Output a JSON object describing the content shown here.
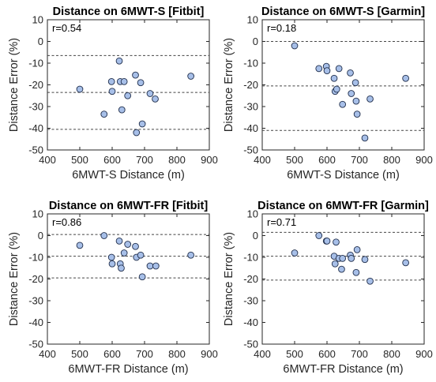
{
  "colors": {
    "marker_fill": "#a7bfe8",
    "marker_edge": "#1f2d4a"
  },
  "chart_data": [
    {
      "type": "scatter",
      "title": "Distance on 6MWT-S [Fitbit]",
      "xlabel": "6MWT-S Distance (m)",
      "ylabel": "Distance Error (%)",
      "xlim": [
        400,
        900
      ],
      "ylim": [
        -50,
        10
      ],
      "xticks": [
        400,
        500,
        600,
        700,
        800,
        900
      ],
      "yticks": [
        -50,
        -40,
        -30,
        -20,
        -10,
        0,
        10
      ],
      "grid": false,
      "annotation": "r=0.54",
      "ref_lines": [
        -6.5,
        -23.5,
        -40.5
      ],
      "points": [
        [
          500,
          -22
        ],
        [
          575,
          -33.5
        ],
        [
          598,
          -18.5
        ],
        [
          600,
          -23
        ],
        [
          622,
          -9
        ],
        [
          625,
          -18.5
        ],
        [
          630,
          -31.5
        ],
        [
          637,
          -18.5
        ],
        [
          648,
          -25
        ],
        [
          672,
          -15.5
        ],
        [
          675,
          -42
        ],
        [
          688,
          -19
        ],
        [
          693,
          -38
        ],
        [
          717,
          -24
        ],
        [
          733,
          -26.5
        ],
        [
          843,
          -16
        ]
      ]
    },
    {
      "type": "scatter",
      "title": "Distance on 6MWT-S [Garmin]",
      "xlabel": "6MWT-S Distance (m)",
      "ylabel": "Distance Error (%)",
      "xlim": [
        400,
        900
      ],
      "ylim": [
        -50,
        10
      ],
      "xticks": [
        400,
        500,
        600,
        700,
        800,
        900
      ],
      "yticks": [
        -50,
        -40,
        -30,
        -20,
        -10,
        0,
        10
      ],
      "grid": false,
      "annotation": "r=0.18",
      "ref_lines": [
        0,
        -20.5,
        -41
      ],
      "points": [
        [
          500,
          -2
        ],
        [
          575,
          -12.5
        ],
        [
          598,
          -11.5
        ],
        [
          600,
          -13.5
        ],
        [
          622,
          -17
        ],
        [
          625,
          -23
        ],
        [
          630,
          -22
        ],
        [
          637,
          -12.5
        ],
        [
          648,
          -29
        ],
        [
          672,
          -14.5
        ],
        [
          675,
          -24
        ],
        [
          688,
          -19
        ],
        [
          693,
          -33.5
        ],
        [
          690,
          -27.5
        ],
        [
          717,
          -44.5
        ],
        [
          733,
          -26.5
        ],
        [
          843,
          -17
        ]
      ]
    },
    {
      "type": "scatter",
      "title": "Distance on 6MWT-FR [Fitbit]",
      "xlabel": "6MWT-FR Distance (m)",
      "ylabel": "Distance Error (%)",
      "xlim": [
        400,
        900
      ],
      "ylim": [
        -50,
        10
      ],
      "xticks": [
        400,
        500,
        600,
        700,
        800,
        900
      ],
      "yticks": [
        -50,
        -40,
        -30,
        -20,
        -10,
        0,
        10
      ],
      "grid": false,
      "annotation": "r=0.86",
      "ref_lines": [
        0.5,
        -9.5,
        -19.5
      ],
      "points": [
        [
          500,
          -4.5
        ],
        [
          575,
          0
        ],
        [
          598,
          -10
        ],
        [
          600,
          -13
        ],
        [
          622,
          -2.5
        ],
        [
          625,
          -13
        ],
        [
          628,
          -15
        ],
        [
          637,
          -8
        ],
        [
          648,
          -4
        ],
        [
          672,
          -5
        ],
        [
          675,
          -10
        ],
        [
          688,
          -9
        ],
        [
          693,
          -19
        ],
        [
          717,
          -14
        ],
        [
          735,
          -14
        ],
        [
          843,
          -9
        ]
      ]
    },
    {
      "type": "scatter",
      "title": "Distance on 6MWT-FR [Garmin]",
      "xlabel": "6MWT-FR Distance (m)",
      "ylabel": "Distance Error (%)",
      "xlim": [
        400,
        900
      ],
      "ylim": [
        -50,
        10
      ],
      "xticks": [
        400,
        500,
        600,
        700,
        800,
        900
      ],
      "yticks": [
        -50,
        -40,
        -30,
        -20,
        -10,
        0,
        10
      ],
      "grid": false,
      "annotation": "r=0.71",
      "ref_lines": [
        1.5,
        -9.5,
        -20.5
      ],
      "points": [
        [
          500,
          -8
        ],
        [
          575,
          0
        ],
        [
          598,
          -2.5
        ],
        [
          600,
          -2.5
        ],
        [
          622,
          -9.5
        ],
        [
          625,
          -13
        ],
        [
          628,
          -3
        ],
        [
          637,
          -10.5
        ],
        [
          645,
          -15.5
        ],
        [
          648,
          -10.5
        ],
        [
          672,
          -9
        ],
        [
          675,
          -10.5
        ],
        [
          690,
          -17
        ],
        [
          693,
          -6.5
        ],
        [
          717,
          -11
        ],
        [
          733,
          -21
        ],
        [
          843,
          -12.5
        ]
      ]
    }
  ]
}
